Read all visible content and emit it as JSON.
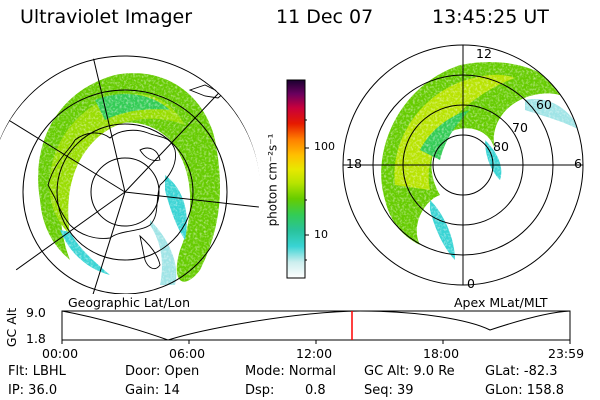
{
  "header": {
    "instrument": "Ultraviolet Imager",
    "date": "11 Dec 07",
    "time": "13:45:25 UT"
  },
  "left_panel": {
    "caption": "Geographic Lat/Lon"
  },
  "right_panel": {
    "caption": "Apex MLat/MLT",
    "mlt_labels": [
      "12",
      "18",
      "6",
      "0"
    ],
    "mlat_labels": [
      "60",
      "70",
      "80"
    ]
  },
  "colorbar": {
    "unit_label": "photon cm⁻²s⁻¹",
    "tick_labels": [
      "100",
      "10"
    ]
  },
  "altitude_plot": {
    "ylabel": "GC Alt",
    "y_ticks": [
      "9.0",
      "1.8"
    ],
    "x_ticks": [
      "00:00",
      "06:00",
      "12:00",
      "18:00",
      "23:59"
    ],
    "current_marker": "13:45"
  },
  "info": {
    "flt": "Flt: LBHL",
    "ip": "IP: 36.0",
    "door": "Door: Open",
    "gain": "Gain: 14",
    "mode": "Mode: Normal",
    "dsp_label": "Dsp:",
    "dsp_value": "0.8",
    "gc_alt": "GC Alt: 9.0 Re",
    "seq": "Seq: 39",
    "glat": "GLat: -82.3",
    "glon": "GLon: 158.8"
  },
  "colors": {
    "colorbar_stops": [
      "#ffffff",
      "#e4f3f3",
      "#9fe4e6",
      "#39d4d4",
      "#29c39c",
      "#33cc55",
      "#66cc00",
      "#b8e400",
      "#e8e800",
      "#ffc000",
      "#ff7f00",
      "#e61a00",
      "#c8003c",
      "#8c0064",
      "#400060",
      "#1a0030"
    ]
  }
}
